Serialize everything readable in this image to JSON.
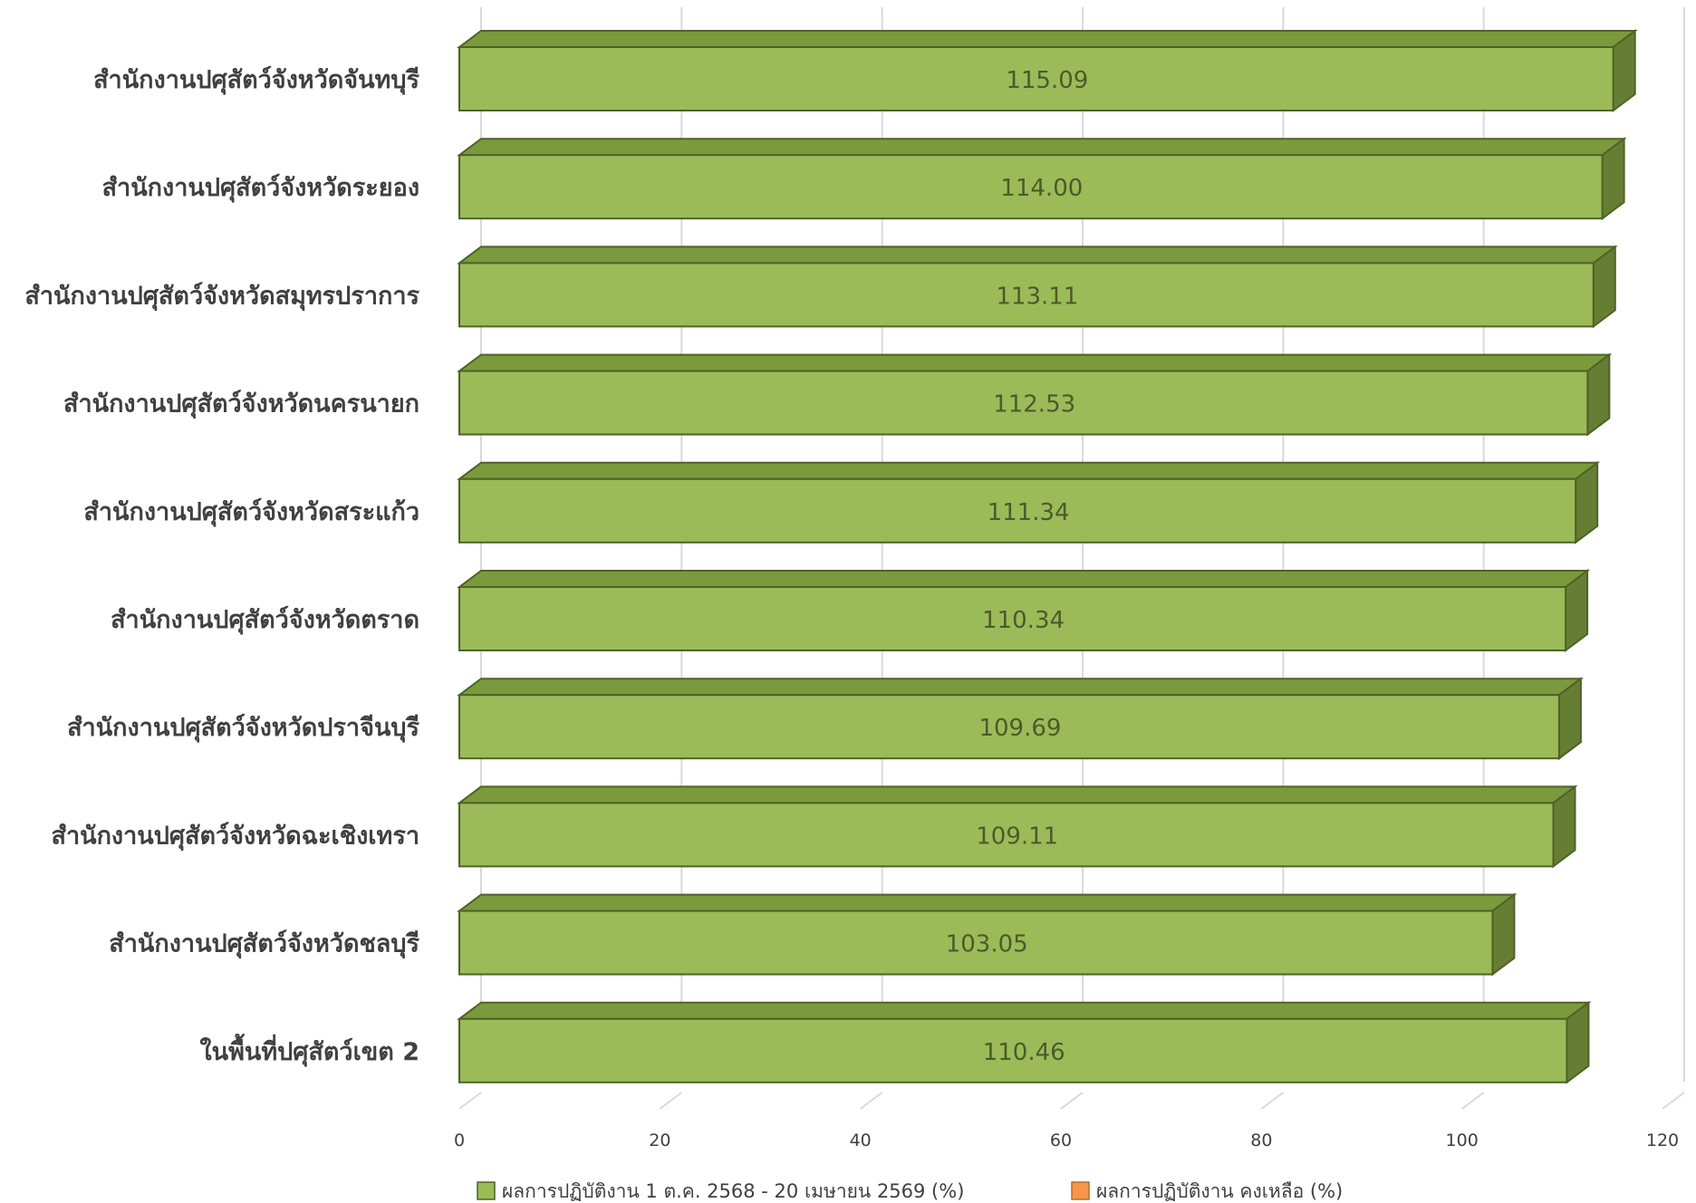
{
  "chart_data": {
    "type": "bar",
    "orientation": "horizontal",
    "style": "3d",
    "categories": [
      "สำนักงานปศุสัตว์จังหวัดจันทบุรี",
      "สำนักงานปศุสัตว์จังหวัดระยอง",
      "สำนักงานปศุสัตว์จังหวัดสมุทรปราการ",
      "สำนักงานปศุสัตว์จังหวัดนครนายก",
      "สำนักงานปศุสัตว์จังหวัดสระแก้ว",
      "สำนักงานปศุสัตว์จังหวัดตราด",
      "สำนักงานปศุสัตว์จังหวัดปราจีนบุรี",
      "สำนักงานปศุสัตว์จังหวัดฉะเชิงเทรา",
      "สำนักงานปศุสัตว์จังหวัดชลบุรี",
      "ในพื้นที่ปศุสัตว์เขต 2"
    ],
    "series": [
      {
        "name": "ผลการปฏิบัติงาน 1 ต.ค. 2568 - 20 เมษายน 2569 (%)",
        "color": "#9bbb59",
        "values": [
          115.09,
          114.0,
          113.11,
          112.53,
          111.34,
          110.34,
          109.69,
          109.11,
          103.05,
          110.46
        ]
      },
      {
        "name": "ผลการปฏิบัติงาน คงเหลือ (%)",
        "color": "#f79646",
        "values": [
          0,
          0,
          0,
          0,
          0,
          0,
          0,
          0,
          0,
          0
        ]
      }
    ],
    "data_labels": [
      "115.09",
      "114.00",
      "113.11",
      "112.53",
      "111.34",
      "110.34",
      "109.69",
      "109.11",
      "103.05",
      "110.46"
    ],
    "xlim": [
      0,
      120
    ],
    "xticks": [
      0,
      20,
      40,
      60,
      80,
      100,
      120
    ],
    "grid": true,
    "legend_position": "bottom",
    "title": "",
    "xlabel": "",
    "ylabel": ""
  }
}
